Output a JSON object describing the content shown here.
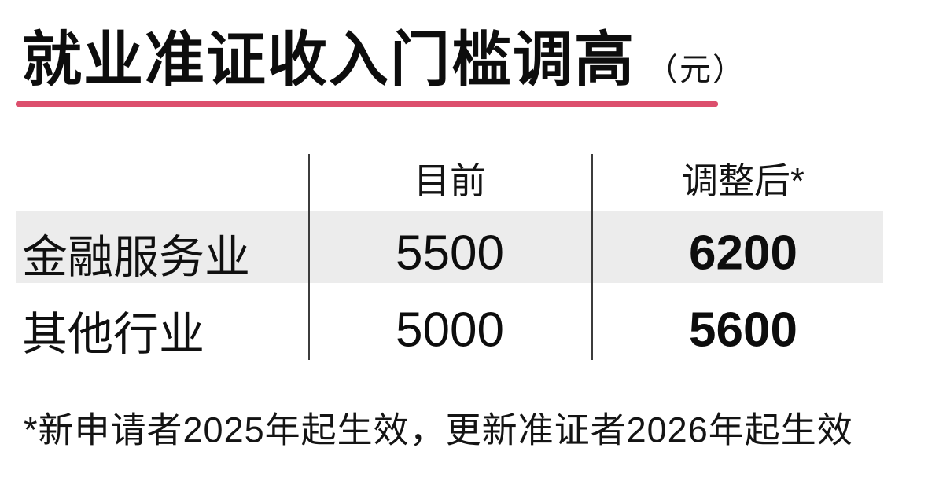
{
  "title": {
    "text": "就业准证收入门槛调高",
    "unit": "（元）"
  },
  "table": {
    "column_headers": {
      "current": "目前",
      "adjusted": "调整后*"
    },
    "rows": [
      {
        "label": "金融服务业",
        "current": "5500",
        "adjusted": "6200",
        "highlighted": true
      },
      {
        "label": "其他行业",
        "current": "5000",
        "adjusted": "5600",
        "highlighted": false
      }
    ]
  },
  "footnote": "*新申请者2025年起生效，更新准证者2026年起生效",
  "colors": {
    "accent": "#dc4f6d",
    "row_highlight": "#ececec",
    "divider": "#3c3c3c",
    "text": "#111111",
    "background": "#ffffff"
  },
  "chart_data": {
    "type": "table",
    "title": "就业准证收入门槛调高",
    "unit": "元",
    "columns": [
      "目前",
      "调整后*"
    ],
    "categories": [
      "金融服务业",
      "其他行业"
    ],
    "series": [
      {
        "name": "目前",
        "values": [
          5500,
          5000
        ]
      },
      {
        "name": "调整后*",
        "values": [
          6200,
          5600
        ]
      }
    ],
    "footnote": "*新申请者2025年起生效，更新准证者2026年起生效",
    "layout": {
      "highlighted_row": "金融服务业",
      "adjusted_column_bold": true
    }
  }
}
